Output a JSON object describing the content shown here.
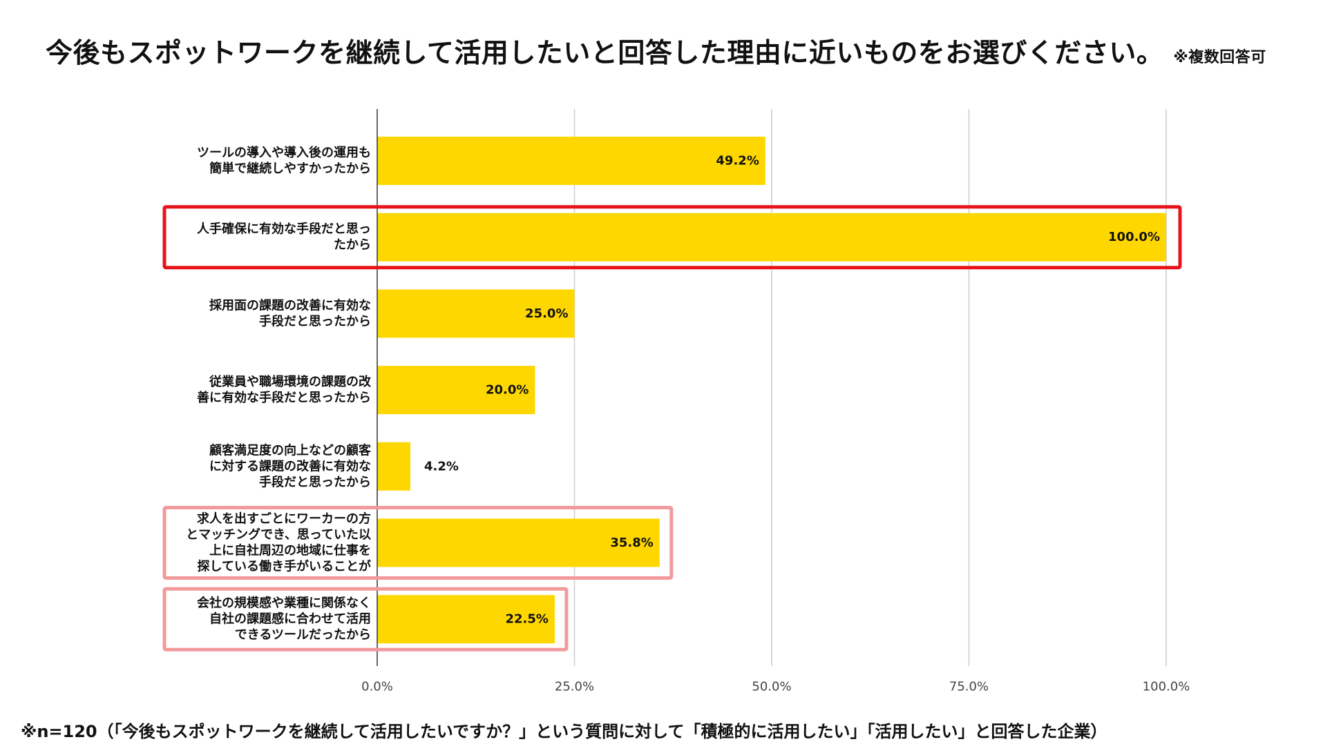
{
  "title": {
    "main": "今後もスポットワークを継続して活用したいと回答した理由に近いものをお選びください。",
    "note": "※複数回答可"
  },
  "chart_data": {
    "type": "bar",
    "orientation": "horizontal",
    "unit": "%",
    "xlim": [
      0,
      100
    ],
    "grid": true,
    "bar_color": "#FFD700",
    "categories": [
      [
        "ツールの導入や導入後の運用も",
        "簡単で継続しやすかったから"
      ],
      [
        "人手確保に有効な手段だと思っ",
        "たから"
      ],
      [
        "採用面の課題の改善に有効な",
        "手段だと思ったから"
      ],
      [
        "従業員や職場環境の課題の改",
        "善に有効な手段だと思ったから"
      ],
      [
        "顧客満足度の向上などの顧客",
        "に対する課題の改善に有効な",
        "手段だと思ったから"
      ],
      [
        "求人を出すごとにワーカーの方",
        "とマッチングでき、思っていた以",
        "上に自社周辺の地域に仕事を",
        "探している働き手がいることが"
      ],
      [
        "会社の規模感や業種に関係なく",
        "自社の課題感に合わせて活用",
        "できるツールだったから"
      ]
    ],
    "values": [
      49.2,
      100.0,
      25.0,
      20.0,
      4.2,
      35.8,
      22.5
    ],
    "value_labels": [
      "49.2%",
      "100.0%",
      "25.0%",
      "20.0%",
      "4.2%",
      "35.8%",
      "22.5%"
    ],
    "x_ticks": [
      0,
      25,
      50,
      75,
      100
    ],
    "x_tick_labels": [
      "0.0%",
      "25.0%",
      "50.0%",
      "75.0%",
      "100.0%"
    ],
    "highlights": [
      {
        "index": 1,
        "color": "#E8141B"
      },
      {
        "index": 5,
        "color": "#F2999C"
      },
      {
        "index": 6,
        "color": "#F2999C"
      }
    ]
  },
  "footnote": "※n=120（「今後もスポットワークを継続して活用したいですか？」という質問に対して「積極的に活用したい」「活用したい」と回答した企業）"
}
